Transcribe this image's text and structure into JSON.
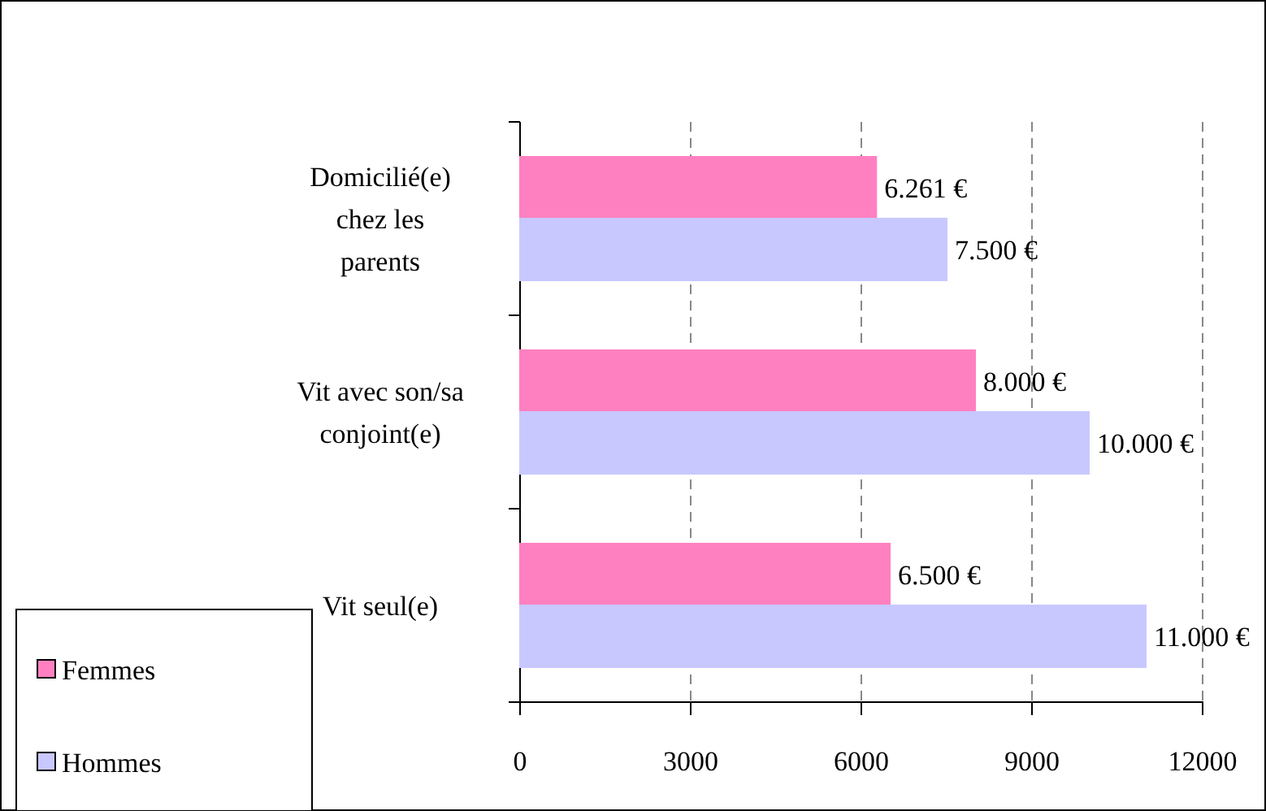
{
  "chart_data": {
    "type": "bar",
    "orientation": "horizontal",
    "categories": [
      "Domicilié(e) chez les parents",
      "Vit avec son/sa conjoint(e)",
      "Vit seul(e)"
    ],
    "series": [
      {
        "name": "Femmes",
        "color": "#ff80c0",
        "values": [
          6261,
          8000,
          6500
        ],
        "value_labels": [
          "6.261 €",
          "8.000 €",
          "6.500 €"
        ]
      },
      {
        "name": "Hommes",
        "color": "#c8c8ff",
        "values": [
          7500,
          10000,
          11000
        ],
        "value_labels": [
          "7.500 €",
          "10.000 €",
          "11.000 €"
        ]
      }
    ],
    "xlim": [
      0,
      12000
    ],
    "xticks": [
      0,
      3000,
      6000,
      9000,
      12000
    ],
    "grid": "x",
    "legend": "bottom left"
  }
}
